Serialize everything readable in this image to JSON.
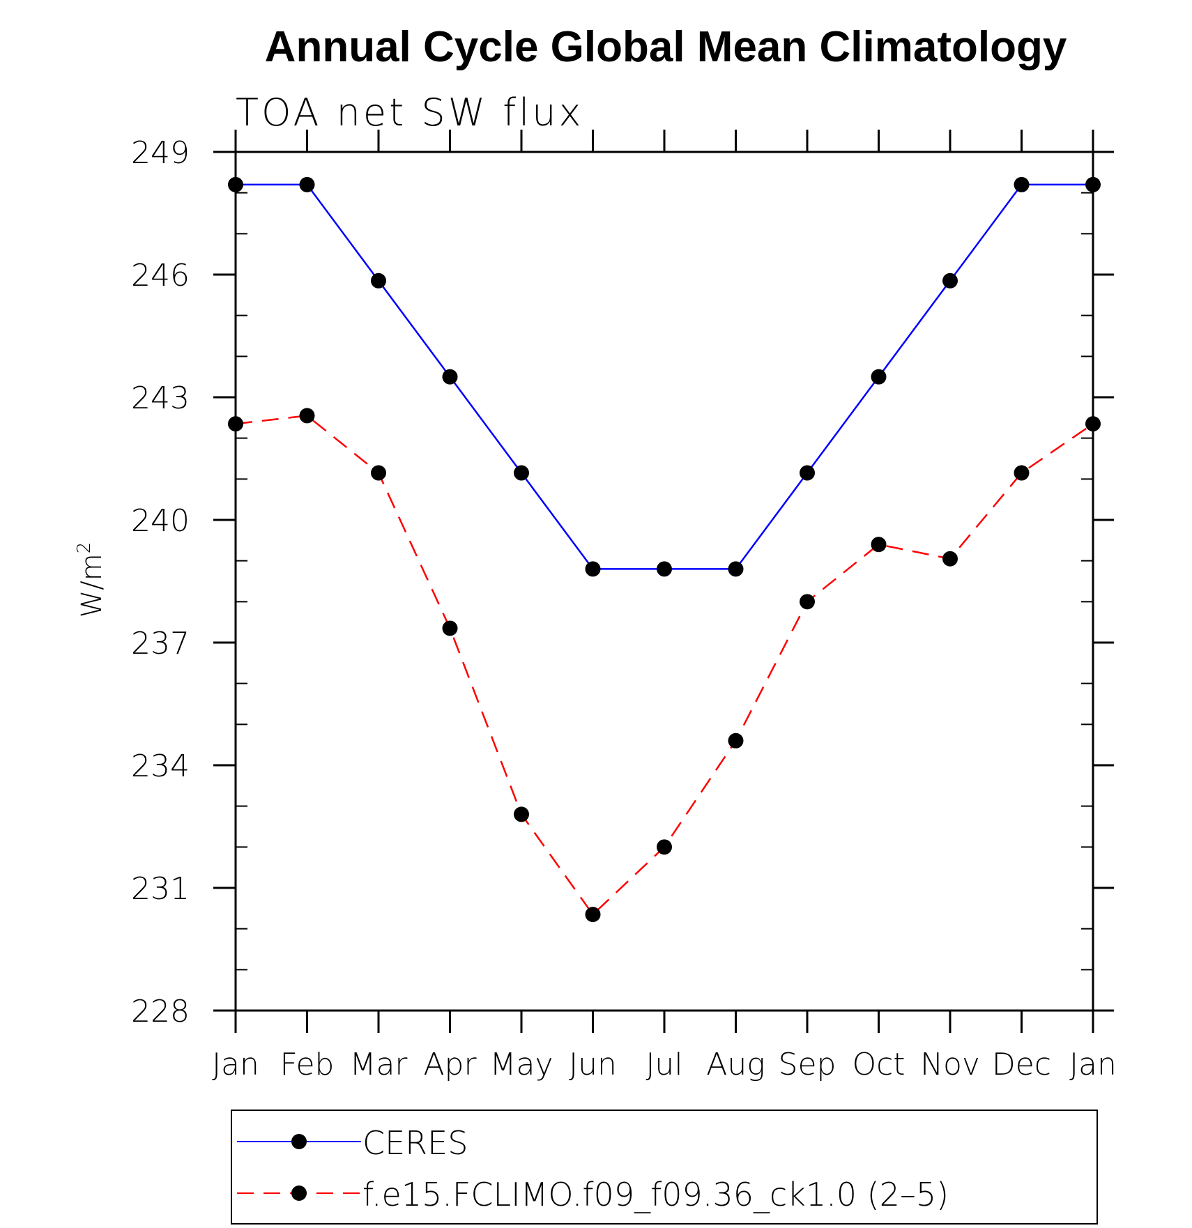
{
  "chart_data": {
    "type": "line",
    "title": "Annual Cycle Global Mean Climatology",
    "subtitle": "TOA net SW flux",
    "xlabel": "",
    "ylabel": "W/m",
    "ylabel_superscript": "2",
    "categories": [
      "Jan",
      "Feb",
      "Mar",
      "Apr",
      "May",
      "Jun",
      "Jul",
      "Aug",
      "Sep",
      "Oct",
      "Nov",
      "Dec",
      "Jan"
    ],
    "ylim": [
      228,
      249
    ],
    "yticks": [
      228,
      231,
      234,
      237,
      240,
      243,
      246,
      249
    ],
    "ytick_labels": [
      "228",
      "231",
      "234",
      "237",
      "240",
      "243",
      "246",
      "249"
    ],
    "series": [
      {
        "name": "CERES",
        "color": "#0000ff",
        "style": "solid",
        "values": [
          248.2,
          248.2,
          245.85,
          243.5,
          241.15,
          238.8,
          238.8,
          238.8,
          241.15,
          243.5,
          245.85,
          248.2,
          248.2
        ]
      },
      {
        "name": "f.e15.FCLIMO.f09_f09.36_ck1.0 (2–5)",
        "color": "#ff0000",
        "style": "dashed",
        "values": [
          242.35,
          242.55,
          241.15,
          237.35,
          232.8,
          230.35,
          232.0,
          234.6,
          238.0,
          239.4,
          239.05,
          241.15,
          242.35
        ]
      }
    ],
    "legend_position": "bottom",
    "marker_color": "#000000"
  }
}
